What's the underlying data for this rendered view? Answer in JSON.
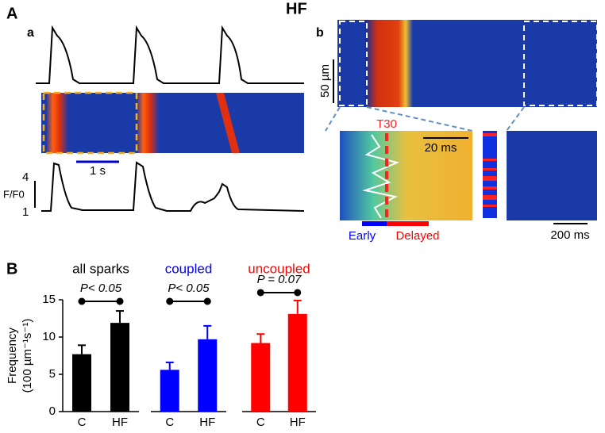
{
  "figure": {
    "group": "HF",
    "panel_a": "A",
    "sub_a": "a",
    "scale_a": "1 s",
    "f_top": "4",
    "f_label": "F/F0",
    "f_bottom": "1",
    "sub_b": "b",
    "scale_um": "50 µm",
    "t30": "T30",
    "scale_20ms": "20 ms",
    "early": "Early",
    "delayed": "Delayed",
    "scale_200ms": "200 ms",
    "panel_b": "B"
  },
  "chart_data": [
    {
      "type": "bar",
      "title": "all sparks",
      "title_color": "#000000",
      "color": "#000000",
      "categories": [
        "C",
        "HF"
      ],
      "values": [
        7.7,
        11.9
      ],
      "errors": [
        1.2,
        1.6
      ],
      "annotation": "P< 0.05",
      "ylim": [
        0,
        15
      ],
      "yticks": [
        0,
        5,
        10,
        15
      ],
      "ylabel": [
        "Frequency",
        "(100 µm⁻¹s⁻¹)"
      ]
    },
    {
      "type": "bar",
      "title": "coupled",
      "title_color": "#0000ff",
      "color": "#0000ff",
      "categories": [
        "C",
        "HF"
      ],
      "values": [
        5.6,
        9.7
      ],
      "errors": [
        1.0,
        1.8
      ],
      "annotation": "P< 0.05",
      "ylim": [
        0,
        15
      ]
    },
    {
      "type": "bar",
      "title": "uncoupled",
      "title_color": "#ff0000",
      "color": "#ff0000",
      "categories": [
        "C",
        "HF"
      ],
      "values": [
        9.2,
        13.1
      ],
      "errors": [
        1.2,
        1.8
      ],
      "annotation": "P = 0.07",
      "ylim": [
        0,
        15
      ]
    }
  ]
}
